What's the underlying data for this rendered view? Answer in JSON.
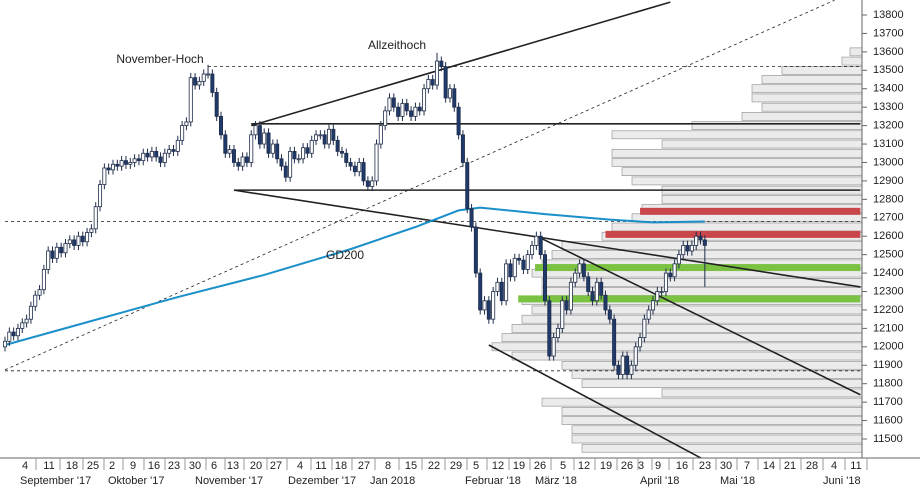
{
  "chart_data": {
    "type": "candlestick",
    "up_color": "#ffffff",
    "down_color": "#1f3a6b",
    "ylim": [
      11400,
      13870
    ],
    "yticks": [
      11500,
      11600,
      11700,
      11800,
      11900,
      12000,
      12100,
      12200,
      12300,
      12400,
      12500,
      12600,
      12700,
      12800,
      12900,
      13000,
      13100,
      13200,
      13300,
      13400,
      13500,
      13600,
      13700,
      13800
    ],
    "xticks": [
      "4",
      "11",
      "18",
      "25",
      "2",
      "9",
      "16",
      "23",
      "30",
      "6",
      "13",
      "20",
      "27",
      "4",
      "11",
      "18",
      "27",
      "8",
      "15",
      "22",
      "29",
      "5",
      "12",
      "19",
      "26",
      "5",
      "12",
      "19",
      "26",
      "3",
      "9",
      "16",
      "23",
      "30",
      "7",
      "14",
      "21",
      "28",
      "4",
      "11"
    ],
    "months": [
      "September '17",
      "Oktober '17",
      "November '17",
      "Dezember '17",
      "Jan 2018",
      "Februar '18",
      "März '18",
      "April '18",
      "Mai '18",
      "Juni '18"
    ],
    "annotations": [
      "November-Hoch",
      "Allzeithoch",
      "GD200"
    ],
    "candles": [
      [
        12000,
        12055,
        11975,
        12030
      ],
      [
        12030,
        12105,
        12005,
        12080
      ],
      [
        12080,
        12105,
        12035,
        12060
      ],
      [
        12060,
        12125,
        12035,
        12100
      ],
      [
        12100,
        12155,
        12075,
        12130
      ],
      [
        12130,
        12175,
        12105,
        12150
      ],
      [
        12150,
        12245,
        12125,
        12220
      ],
      [
        12220,
        12305,
        12195,
        12280
      ],
      [
        12280,
        12335,
        12255,
        12310
      ],
      [
        12310,
        12445,
        12285,
        12420
      ],
      [
        12420,
        12545,
        12395,
        12520
      ],
      [
        12520,
        12545,
        12455,
        12480
      ],
      [
        12480,
        12565,
        12455,
        12540
      ],
      [
        12540,
        12565,
        12485,
        12510
      ],
      [
        12510,
        12585,
        12485,
        12560
      ],
      [
        12560,
        12605,
        12535,
        12580
      ],
      [
        12580,
        12605,
        12525,
        12550
      ],
      [
        12550,
        12625,
        12525,
        12600
      ],
      [
        12600,
        12625,
        12545,
        12570
      ],
      [
        12570,
        12645,
        12545,
        12620
      ],
      [
        12620,
        12665,
        12595,
        12640
      ],
      [
        12640,
        12785,
        12615,
        12760
      ],
      [
        12760,
        12905,
        12735,
        12880
      ],
      [
        12880,
        12995,
        12855,
        12970
      ],
      [
        12970,
        12995,
        12935,
        12960
      ],
      [
        12960,
        13015,
        12935,
        12990
      ],
      [
        12990,
        13015,
        12955,
        12980
      ],
      [
        12980,
        13035,
        12955,
        13010
      ],
      [
        13010,
        13035,
        12965,
        12990
      ],
      [
        12990,
        13025,
        12965,
        13000
      ],
      [
        13000,
        13045,
        12975,
        13020
      ],
      [
        13020,
        13045,
        12985,
        13010
      ],
      [
        13010,
        13075,
        12985,
        13050
      ],
      [
        13050,
        13075,
        13005,
        13030
      ],
      [
        13030,
        13085,
        13005,
        13060
      ],
      [
        13060,
        13085,
        13005,
        13030
      ],
      [
        13030,
        13055,
        12975,
        13000
      ],
      [
        13000,
        13075,
        12975,
        13050
      ],
      [
        13050,
        13095,
        13025,
        13070
      ],
      [
        13070,
        13095,
        13035,
        13060
      ],
      [
        13060,
        13145,
        13035,
        13120
      ],
      [
        13120,
        13225,
        13095,
        13200
      ],
      [
        13200,
        13245,
        13175,
        13220
      ],
      [
        13220,
        13485,
        13195,
        13460
      ],
      [
        13460,
        13485,
        13395,
        13420
      ],
      [
        13420,
        13465,
        13395,
        13440
      ],
      [
        13440,
        13505,
        13415,
        13480
      ],
      [
        13480,
        13530,
        13455,
        13480
      ],
      [
        13480,
        13505,
        13355,
        13380
      ],
      [
        13380,
        13405,
        13225,
        13250
      ],
      [
        13250,
        13275,
        13125,
        13150
      ],
      [
        13150,
        13175,
        13025,
        13050
      ],
      [
        13050,
        13095,
        13025,
        13070
      ],
      [
        13070,
        13095,
        12975,
        13000
      ],
      [
        13000,
        13025,
        12955,
        12980
      ],
      [
        12980,
        13055,
        12955,
        13030
      ],
      [
        13030,
        13055,
        12975,
        13000
      ],
      [
        13000,
        13175,
        12975,
        13150
      ],
      [
        13150,
        13225,
        13125,
        13200
      ],
      [
        13200,
        13225,
        13075,
        13100
      ],
      [
        13100,
        13185,
        13075,
        13160
      ],
      [
        13160,
        13185,
        13025,
        13050
      ],
      [
        13050,
        13125,
        13025,
        13100
      ],
      [
        13100,
        13125,
        12995,
        13020
      ],
      [
        13020,
        13045,
        12955,
        12980
      ],
      [
        12980,
        13005,
        12895,
        12920
      ],
      [
        12920,
        13085,
        12895,
        13060
      ],
      [
        13060,
        13085,
        12995,
        13020
      ],
      [
        13020,
        13045,
        12995,
        13020
      ],
      [
        13020,
        13105,
        12995,
        13080
      ],
      [
        13080,
        13105,
        13025,
        13050
      ],
      [
        13050,
        13145,
        13025,
        13120
      ],
      [
        13120,
        13175,
        13095,
        13150
      ],
      [
        13150,
        13175,
        13125,
        13150
      ],
      [
        13150,
        13175,
        13075,
        13100
      ],
      [
        13100,
        13205,
        13075,
        13180
      ],
      [
        13180,
        13205,
        13095,
        13120
      ],
      [
        13120,
        13145,
        13035,
        13060
      ],
      [
        13060,
        13085,
        13025,
        13050
      ],
      [
        13050,
        13075,
        12975,
        13000
      ],
      [
        13000,
        13025,
        12955,
        12980
      ],
      [
        12980,
        13005,
        12925,
        12950
      ],
      [
        12950,
        13025,
        12925,
        13000
      ],
      [
        13000,
        13025,
        12875,
        12900
      ],
      [
        12900,
        12925,
        12845,
        12870
      ],
      [
        12870,
        12925,
        12845,
        12900
      ],
      [
        12900,
        13125,
        12875,
        13100
      ],
      [
        13100,
        13225,
        13075,
        13200
      ],
      [
        13200,
        13305,
        13175,
        13280
      ],
      [
        13280,
        13375,
        13255,
        13350
      ],
      [
        13350,
        13375,
        13275,
        13300
      ],
      [
        13300,
        13325,
        13225,
        13250
      ],
      [
        13250,
        13345,
        13225,
        13320
      ],
      [
        13320,
        13345,
        13255,
        13280
      ],
      [
        13280,
        13305,
        13225,
        13250
      ],
      [
        13250,
        13325,
        13225,
        13300
      ],
      [
        13300,
        13325,
        13255,
        13280
      ],
      [
        13280,
        13425,
        13255,
        13400
      ],
      [
        13400,
        13475,
        13375,
        13450
      ],
      [
        13450,
        13475,
        13395,
        13420
      ],
      [
        13420,
        13595,
        13395,
        13550
      ],
      [
        13550,
        13575,
        13495,
        13520
      ],
      [
        13520,
        13545,
        13325,
        13350
      ],
      [
        13350,
        13425,
        13325,
        13400
      ],
      [
        13400,
        13425,
        13275,
        13300
      ],
      [
        13300,
        13325,
        13125,
        13150
      ],
      [
        13150,
        13175,
        12975,
        13000
      ],
      [
        13000,
        13025,
        12725,
        12750
      ],
      [
        12750,
        12775,
        12625,
        12650
      ],
      [
        12650,
        12675,
        12375,
        12400
      ],
      [
        12400,
        12425,
        12175,
        12200
      ],
      [
        12200,
        12275,
        12175,
        12250
      ],
      [
        12250,
        12275,
        12125,
        12150
      ],
      [
        12150,
        12325,
        12125,
        12300
      ],
      [
        12300,
        12375,
        12275,
        12350
      ],
      [
        12350,
        12375,
        12225,
        12250
      ],
      [
        12250,
        12475,
        12225,
        12450
      ],
      [
        12450,
        12475,
        12355,
        12380
      ],
      [
        12380,
        12505,
        12355,
        12480
      ],
      [
        12480,
        12505,
        12445,
        12470
      ],
      [
        12470,
        12495,
        12395,
        12420
      ],
      [
        12420,
        12525,
        12395,
        12500
      ],
      [
        12500,
        12575,
        12475,
        12550
      ],
      [
        12550,
        12625,
        12525,
        12600
      ],
      [
        12600,
        12625,
        12475,
        12500
      ],
      [
        12500,
        12525,
        12225,
        12250
      ],
      [
        12250,
        12275,
        11925,
        11950
      ],
      [
        11950,
        12075,
        11925,
        12050
      ],
      [
        12050,
        12125,
        12025,
        12100
      ],
      [
        12100,
        12275,
        12075,
        12250
      ],
      [
        12250,
        12275,
        12175,
        12200
      ],
      [
        12200,
        12375,
        12175,
        12350
      ],
      [
        12350,
        12425,
        12325,
        12400
      ],
      [
        12400,
        12475,
        12375,
        12450
      ],
      [
        12450,
        12475,
        12355,
        12380
      ],
      [
        12380,
        12405,
        12275,
        12300
      ],
      [
        12300,
        12325,
        12225,
        12250
      ],
      [
        12250,
        12375,
        12225,
        12350
      ],
      [
        12350,
        12375,
        12255,
        12280
      ],
      [
        12280,
        12305,
        12175,
        12200
      ],
      [
        12200,
        12225,
        12125,
        12150
      ],
      [
        12150,
        12175,
        11875,
        11900
      ],
      [
        11900,
        11925,
        11825,
        11850
      ],
      [
        11850,
        11975,
        11825,
        11950
      ],
      [
        11950,
        11975,
        11825,
        11850
      ],
      [
        11850,
        11925,
        11825,
        11900
      ],
      [
        11900,
        12025,
        11875,
        12000
      ],
      [
        12000,
        12075,
        11975,
        12050
      ],
      [
        12050,
        12175,
        12025,
        12150
      ],
      [
        12150,
        12225,
        12125,
        12200
      ],
      [
        12200,
        12275,
        12175,
        12250
      ],
      [
        12250,
        12325,
        12225,
        12300
      ],
      [
        12300,
        12325,
        12275,
        12300
      ],
      [
        12300,
        12425,
        12275,
        12400
      ],
      [
        12400,
        12425,
        12355,
        12380
      ],
      [
        12380,
        12475,
        12355,
        12450
      ],
      [
        12450,
        12525,
        12425,
        12500
      ],
      [
        12500,
        12575,
        12475,
        12550
      ],
      [
        12550,
        12575,
        12495,
        12520
      ],
      [
        12520,
        12575,
        12495,
        12550
      ],
      [
        12550,
        12625,
        12525,
        12600
      ],
      [
        12600,
        12625,
        12555,
        12580
      ],
      [
        12580,
        12605,
        12325,
        12550
      ]
    ],
    "gd200": {
      "color": "#1a8fc9",
      "x": [
        0,
        20,
        40,
        60,
        80,
        95,
        105,
        110,
        125,
        140,
        150,
        162
      ],
      "values": [
        12010,
        12140,
        12270,
        12390,
        12530,
        12650,
        12740,
        12755,
        12720,
        12690,
        12675,
        12680
      ]
    },
    "volume_profile": {
      "color": "#ebebeb",
      "levels": [
        11450,
        11500,
        11550,
        11600,
        11650,
        11700,
        11750,
        11800,
        11850,
        11900,
        11950,
        12000,
        12050,
        12100,
        12150,
        12200,
        12250,
        12300,
        12350,
        12400,
        12450,
        12500,
        12550,
        12600,
        12650,
        12700,
        12750,
        12800,
        12850,
        12900,
        12950,
        13000,
        13050,
        13100,
        13150,
        13200,
        13250,
        13300,
        13350,
        13400,
        13450,
        13500,
        13550,
        13600
      ],
      "values": [
        280,
        290,
        290,
        300,
        300,
        320,
        200,
        280,
        290,
        300,
        350,
        370,
        360,
        350,
        340,
        330,
        340,
        320,
        320,
        330,
        320,
        310,
        300,
        260,
        250,
        230,
        220,
        200,
        200,
        230,
        240,
        250,
        250,
        200,
        250,
        170,
        120,
        100,
        110,
        110,
        100,
        80,
        20,
        12
      ]
    },
    "trendlines": [
      {
        "style": "solid",
        "x": [
          57,
          154
        ],
        "y": [
          13200,
          13870
        ]
      },
      {
        "style": "solid",
        "x": [
          53,
          198
        ],
        "y": [
          12850,
          12325
        ]
      },
      {
        "style": "dashed",
        "x": [
          0,
          192
        ],
        "y": [
          11875,
          13880
        ]
      },
      {
        "style": "solid",
        "x": [
          124,
          198
        ],
        "y": [
          12590,
          11740
        ]
      },
      {
        "style": "solid",
        "x": [
          112,
          175
        ],
        "y": [
          12010,
          11223
        ]
      },
      {
        "style": "solid",
        "x": [
          57,
          198
        ],
        "y": [
          13210,
          13210
        ]
      },
      {
        "style": "solid",
        "x": [
          53,
          198
        ],
        "y": [
          12850,
          12850
        ]
      },
      {
        "style": "dashed",
        "x": [
          47,
          198
        ],
        "y": [
          13520,
          13520
        ]
      },
      {
        "style": "dashed",
        "x": [
          0,
          198
        ],
        "y": [
          12680,
          12680
        ]
      },
      {
        "style": "dashed",
        "x": [
          0,
          198
        ],
        "y": [
          11870,
          11870
        ]
      }
    ],
    "zones": [
      {
        "color": "#c9474a",
        "x": [
          147,
          198
        ],
        "y": 12735
      },
      {
        "color": "#c9474a",
        "x": [
          139,
          198
        ],
        "y": 12610
      },
      {
        "color": "#7cc242",
        "x": [
          122.7,
          198
        ],
        "y": 12430
      },
      {
        "color": "#7cc242",
        "x": [
          118.8,
          198
        ],
        "y": 12260
      }
    ]
  }
}
